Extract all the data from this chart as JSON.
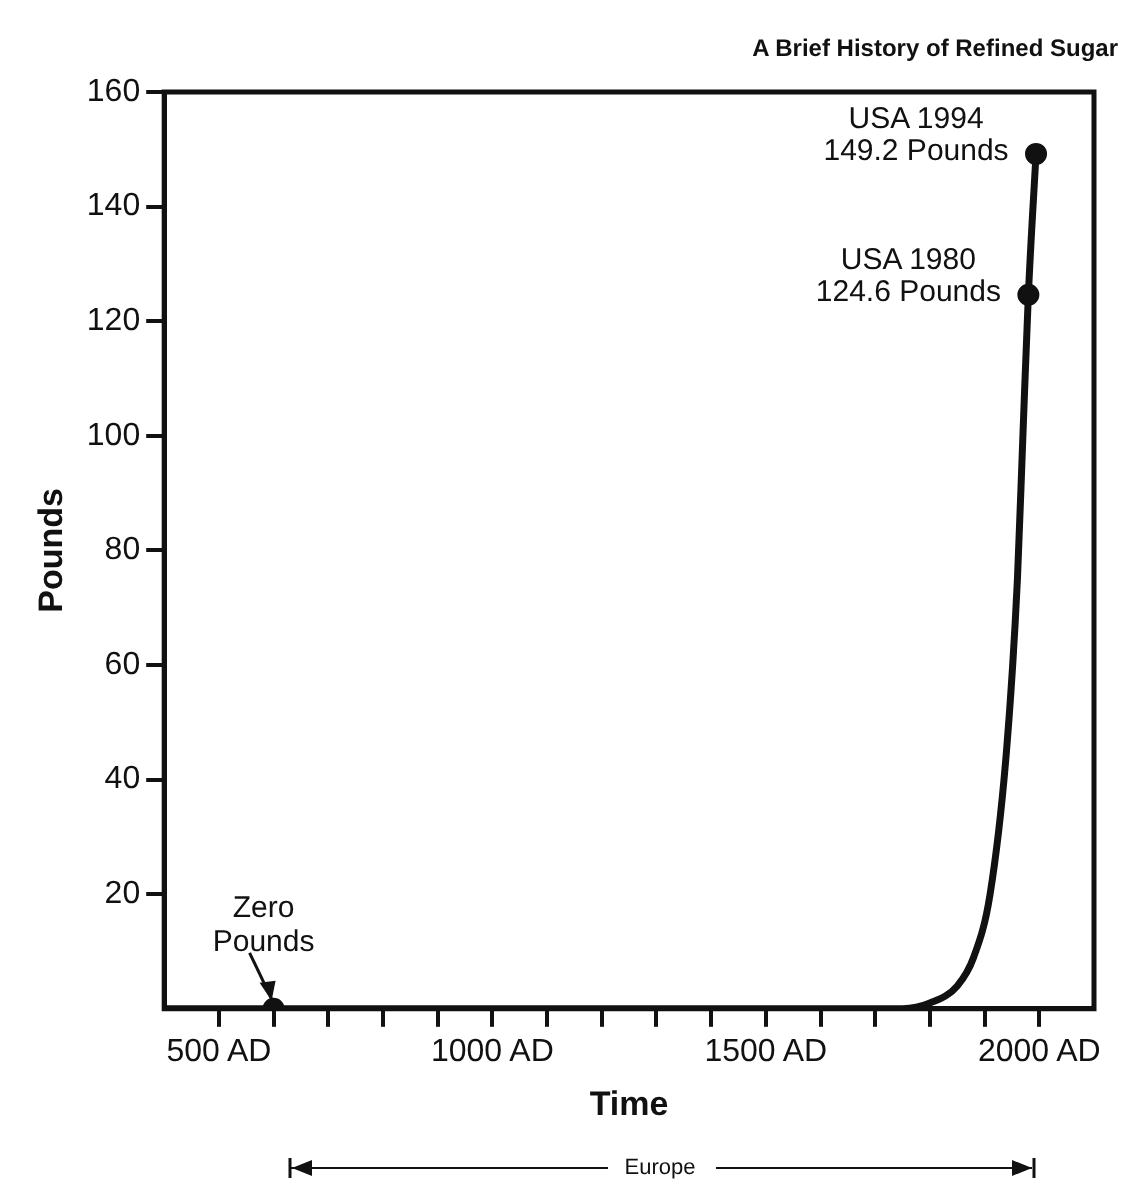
{
  "chart_data": {
    "type": "line",
    "title": "A Brief History of Refined Sugar",
    "xlabel": "Time",
    "ylabel": "Pounds",
    "xlim": [
      400,
      2100
    ],
    "xticks": [
      {
        "value": 500,
        "label": "500 AD"
      },
      {
        "value": 600,
        "label": null
      },
      {
        "value": 700,
        "label": null
      },
      {
        "value": 800,
        "label": null
      },
      {
        "value": 900,
        "label": null
      },
      {
        "value": 1000,
        "label": "1000 AD"
      },
      {
        "value": 1100,
        "label": null
      },
      {
        "value": 1200,
        "label": null
      },
      {
        "value": 1300,
        "label": null
      },
      {
        "value": 1400,
        "label": null
      },
      {
        "value": 1500,
        "label": "1500 AD"
      },
      {
        "value": 1600,
        "label": null
      },
      {
        "value": 1700,
        "label": null
      },
      {
        "value": 1800,
        "label": null
      },
      {
        "value": 1900,
        "label": null
      },
      {
        "value": 2000,
        "label": "2000 AD"
      }
    ],
    "ylim": [
      0,
      160
    ],
    "yticks": [
      20,
      40,
      60,
      80,
      100,
      120,
      140,
      160
    ],
    "grid": false,
    "legend": false,
    "series": [
      {
        "color": "#111111",
        "marker": "none",
        "x": [
          400,
          600,
          1000,
          1500,
          1750,
          1800,
          1850,
          1880,
          1910,
          1940,
          1960,
          1970,
          1980,
          1994
        ],
        "values": [
          0,
          0,
          0,
          0,
          0,
          1,
          4,
          9,
          20,
          45,
          75,
          100,
          124.6,
          149.2
        ]
      },
      {
        "type": "scatter",
        "color": "#111111",
        "marker": "circle",
        "x": [
          600,
          1980,
          1994
        ],
        "values": [
          0,
          124.6,
          149.2
        ]
      }
    ],
    "annotations": [
      {
        "text": "USA 1994\n149.2 Pounds",
        "x": 1994,
        "y": 149.2
      },
      {
        "text": "USA 1980\n124.6 Pounds",
        "x": 1980,
        "y": 124.6
      },
      {
        "text": "Zero\nPounds",
        "x": 600,
        "y": 0
      },
      "Europe"
    ]
  }
}
